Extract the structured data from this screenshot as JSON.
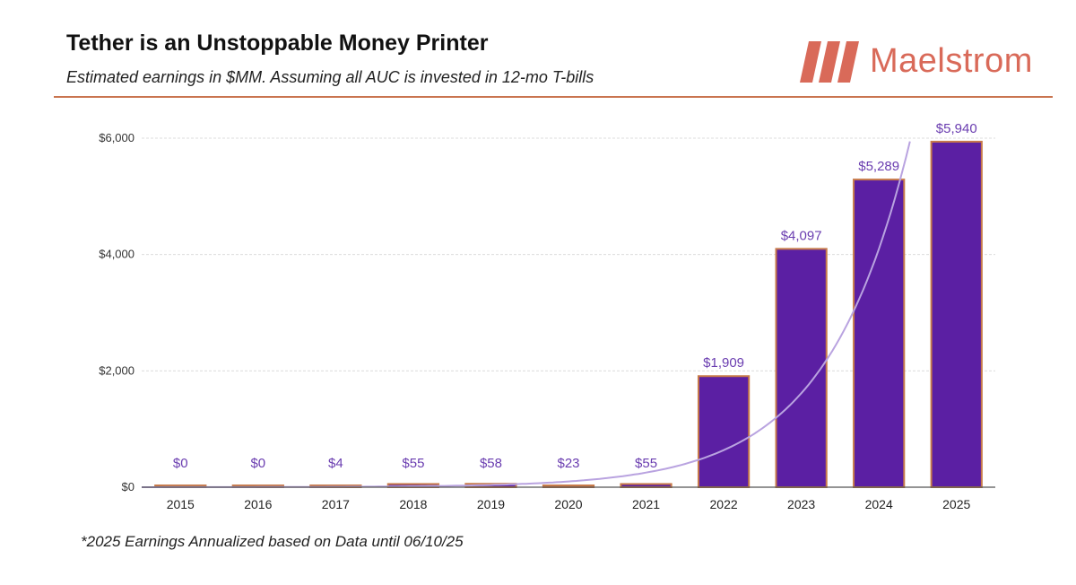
{
  "header": {
    "title": "Tether is an Unstoppable Money Printer",
    "subtitle": "Estimated earnings in $MM. Assuming all AUC is invested in 12-mo T-bills"
  },
  "brand": {
    "name": "Maelstrom",
    "color": "#d96a59"
  },
  "footnote": "*2025 Earnings Annualized based on Data until 06/10/25",
  "chart_data": {
    "type": "bar",
    "categories": [
      "2015",
      "2016",
      "2017",
      "2018",
      "2019",
      "2020",
      "2021",
      "2022",
      "2023",
      "2024",
      "2025"
    ],
    "values": [
      0,
      0,
      4,
      55,
      58,
      23,
      55,
      1909,
      4097,
      5289,
      5940
    ],
    "data_labels": [
      "$0",
      "$0",
      "$4",
      "$55",
      "$58",
      "$23",
      "$55",
      "$1,909",
      "$4,097",
      "$5,289",
      "$5,940"
    ],
    "ylim": [
      0,
      6000
    ],
    "yticks": [
      0,
      2000,
      4000,
      6000
    ],
    "ytick_labels": [
      "$0",
      "$2,000",
      "$4,000",
      "$6,000"
    ],
    "grid": true,
    "trendline": "exponential",
    "colors": {
      "bar_fill": "#5b1fa3",
      "bar_edge": "#c77a4a",
      "label": "#6a3db0",
      "trend": "#b9a3e0"
    }
  }
}
